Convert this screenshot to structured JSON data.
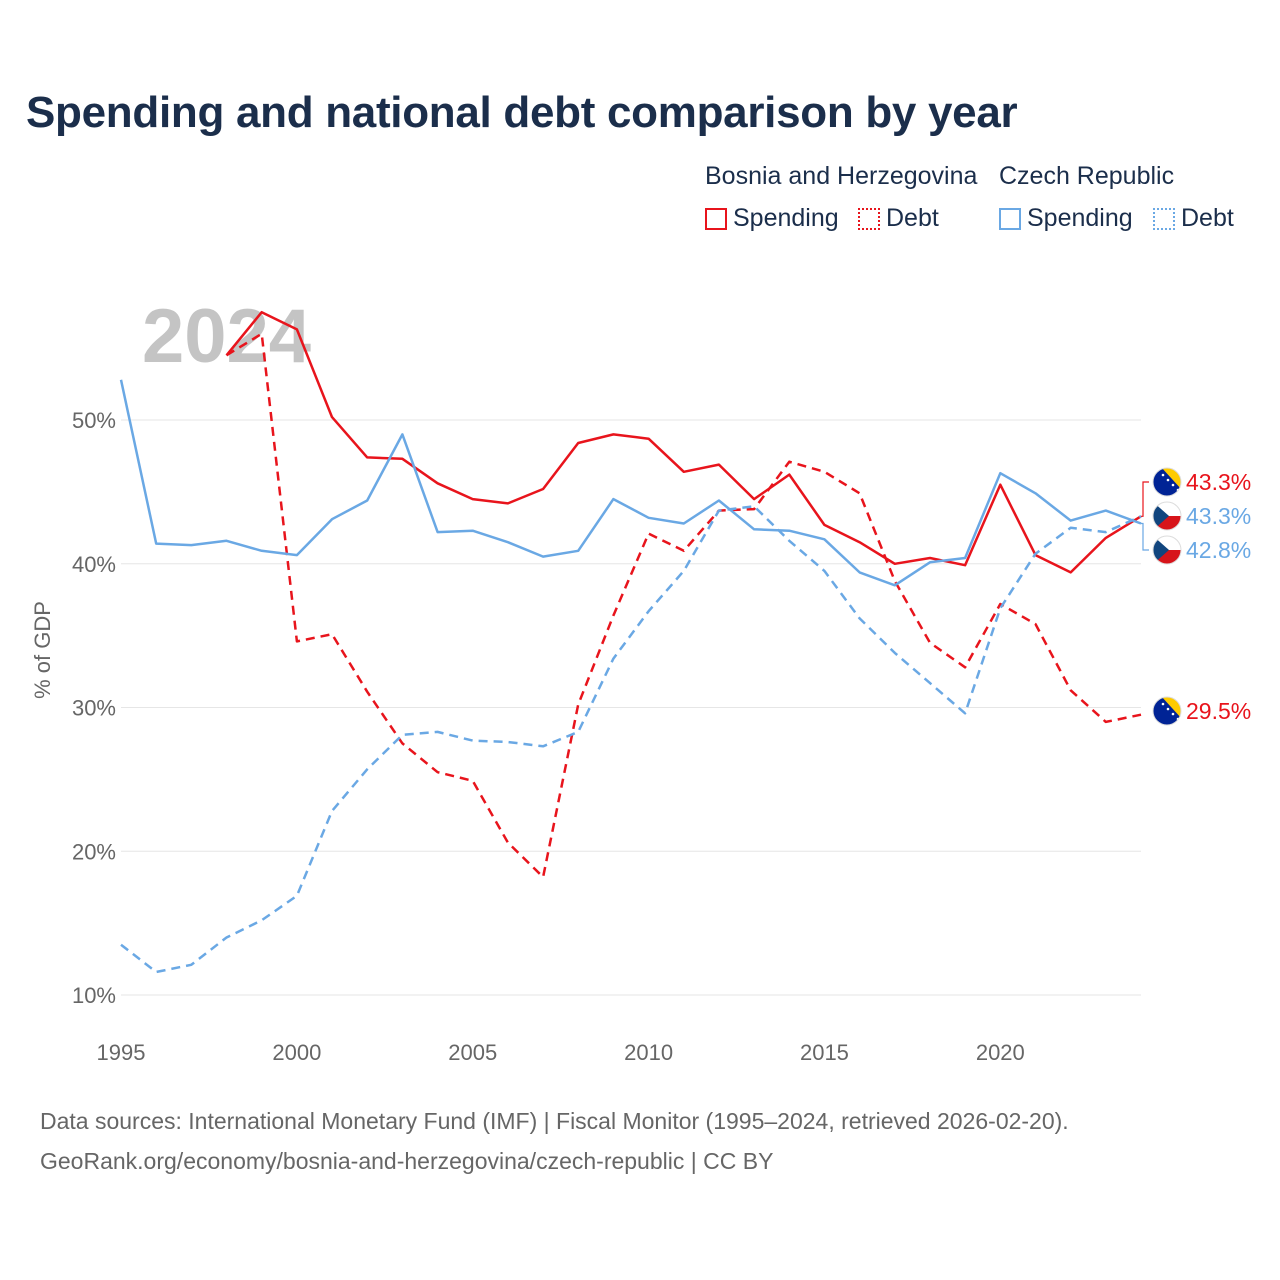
{
  "title": "Spending and national debt comparison by year",
  "legend": {
    "groups": [
      {
        "name": "Bosnia and Herzegovina",
        "color": "#e8141c",
        "items": [
          "Spending",
          "Debt"
        ]
      },
      {
        "name": "Czech Republic",
        "color": "#6aa8e4",
        "items": [
          "Spending",
          "Debt"
        ]
      }
    ]
  },
  "footer": {
    "line1": "Data sources: International Monetary Fund (IMF) | Fiscal Monitor (1995–2024, retrieved 2026-02-20).",
    "line2": "GeoRank.org/economy/bosnia-and-herzegovina/czech-republic | CC BY"
  },
  "chart_data": {
    "type": "line",
    "year_label": "2024",
    "ylabel": "% of GDP",
    "xlim": [
      1995,
      2024
    ],
    "ylim": [
      10,
      57
    ],
    "x_ticks": [
      1995,
      2000,
      2005,
      2010,
      2015,
      2020
    ],
    "y_ticks": [
      {
        "value": 10,
        "label": "10%"
      },
      {
        "value": 20,
        "label": "20%"
      },
      {
        "value": 30,
        "label": "30%"
      },
      {
        "value": 40,
        "label": "40%"
      },
      {
        "value": 50,
        "label": "50%"
      }
    ],
    "series": [
      {
        "name": "Bosnia and Herzegovina Spending",
        "country": "Bosnia and Herzegovina",
        "color": "#e8141c",
        "dashed": false,
        "flag": "ba",
        "x": [
          1998,
          1999,
          2000,
          2001,
          2002,
          2003,
          2004,
          2005,
          2006,
          2007,
          2008,
          2009,
          2010,
          2011,
          2012,
          2013,
          2014,
          2015,
          2016,
          2017,
          2018,
          2019,
          2020,
          2021,
          2022,
          2023,
          2024
        ],
        "values": [
          54.5,
          57.5,
          56.3,
          50.2,
          47.4,
          47.3,
          45.6,
          44.5,
          44.2,
          45.2,
          48.4,
          49.0,
          48.7,
          46.4,
          46.9,
          44.5,
          46.2,
          42.7,
          41.5,
          40.0,
          40.4,
          39.9,
          45.5,
          40.6,
          39.4,
          41.8,
          43.3
        ],
        "end_label": "43.3%"
      },
      {
        "name": "Bosnia and Herzegovina Debt",
        "country": "Bosnia and Herzegovina",
        "color": "#e8141c",
        "dashed": true,
        "flag": "ba",
        "x": [
          1998,
          1999,
          2000,
          2001,
          2002,
          2003,
          2004,
          2005,
          2006,
          2007,
          2008,
          2009,
          2010,
          2011,
          2012,
          2013,
          2014,
          2015,
          2016,
          2017,
          2018,
          2019,
          2020,
          2021,
          2022,
          2023,
          2024
        ],
        "values": [
          54.5,
          56.0,
          34.6,
          35.1,
          31.1,
          27.5,
          25.5,
          24.9,
          20.6,
          18.2,
          30.2,
          36.4,
          42.1,
          40.9,
          43.7,
          43.8,
          47.1,
          46.4,
          44.9,
          38.8,
          34.5,
          32.8,
          37.2,
          35.8,
          31.2,
          29.0,
          29.5
        ],
        "end_label": "29.5%"
      },
      {
        "name": "Czech Republic Spending",
        "country": "Czech Republic",
        "color": "#6aa8e4",
        "dashed": false,
        "flag": "cz",
        "x": [
          1995,
          1996,
          1997,
          1998,
          1999,
          2000,
          2001,
          2002,
          2003,
          2004,
          2005,
          2006,
          2007,
          2008,
          2009,
          2010,
          2011,
          2012,
          2013,
          2014,
          2015,
          2016,
          2017,
          2018,
          2019,
          2020,
          2021,
          2022,
          2023,
          2024
        ],
        "values": [
          52.8,
          41.4,
          41.3,
          41.6,
          40.9,
          40.6,
          43.1,
          44.4,
          49.0,
          42.2,
          42.3,
          41.5,
          40.5,
          40.9,
          44.5,
          43.2,
          42.8,
          44.4,
          42.4,
          42.3,
          41.7,
          39.4,
          38.5,
          40.1,
          40.4,
          46.3,
          44.9,
          43.0,
          43.7,
          42.8
        ],
        "end_label": "42.8%"
      },
      {
        "name": "Czech Republic Debt",
        "country": "Czech Republic",
        "color": "#6aa8e4",
        "dashed": true,
        "flag": "cz",
        "x": [
          1995,
          1996,
          1997,
          1998,
          1999,
          2000,
          2001,
          2002,
          2003,
          2004,
          2005,
          2006,
          2007,
          2008,
          2009,
          2010,
          2011,
          2012,
          2013,
          2014,
          2015,
          2016,
          2017,
          2018,
          2019,
          2020,
          2021,
          2022,
          2023,
          2024
        ],
        "values": [
          13.5,
          11.6,
          12.1,
          14.0,
          15.2,
          16.9,
          22.8,
          25.7,
          28.1,
          28.3,
          27.7,
          27.6,
          27.3,
          28.3,
          33.4,
          36.7,
          39.5,
          43.7,
          44.0,
          41.6,
          39.5,
          36.2,
          33.8,
          31.7,
          29.6,
          36.9,
          40.7,
          42.5,
          42.2,
          43.3
        ],
        "end_label": "43.3%"
      }
    ]
  }
}
